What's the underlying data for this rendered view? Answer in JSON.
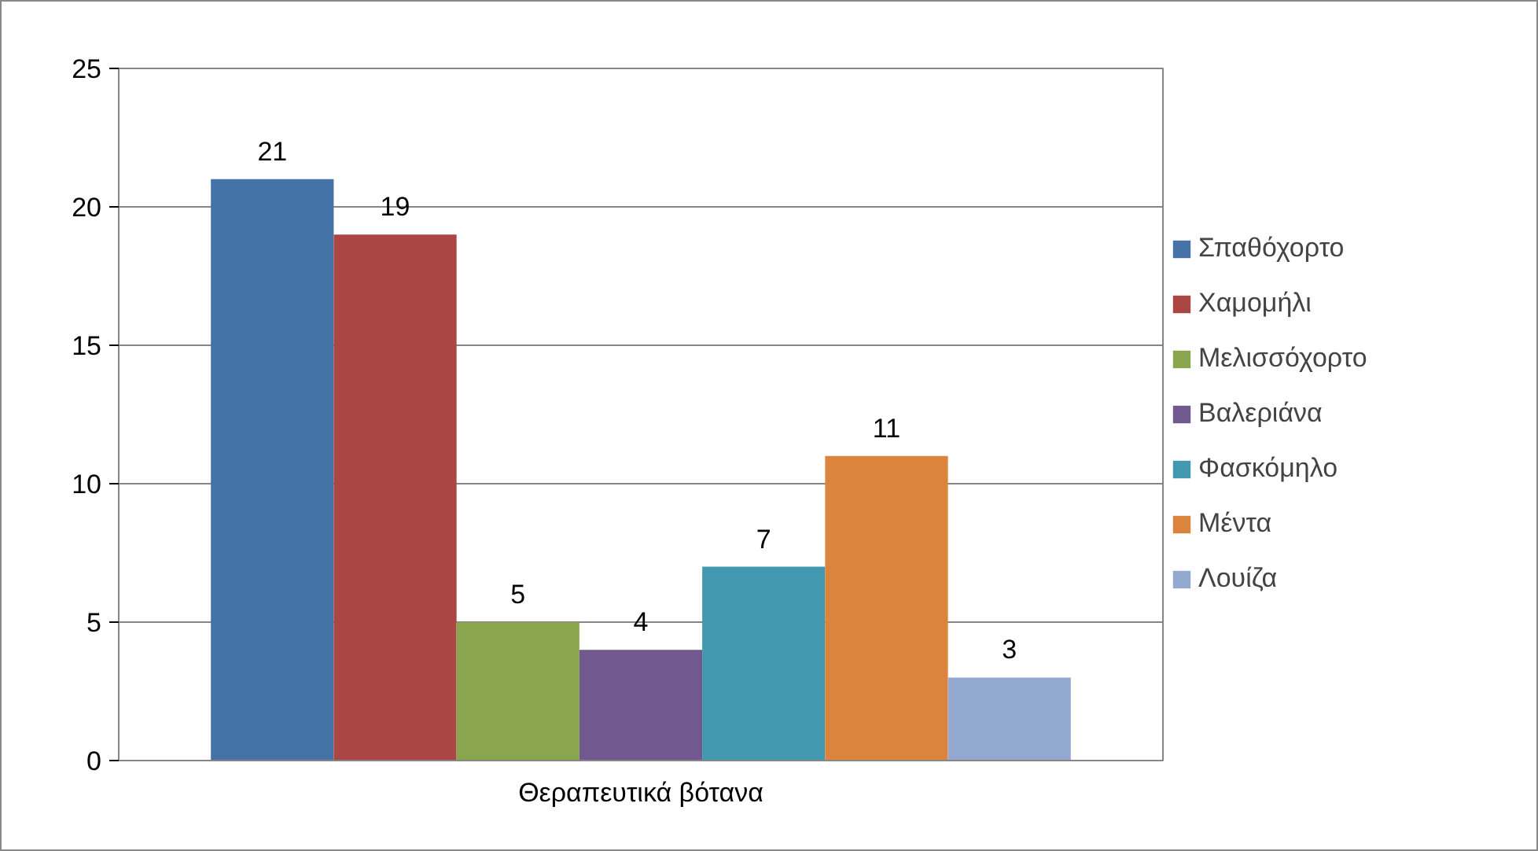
{
  "chart_data": {
    "type": "bar",
    "categories": [
      "Θεραπευτικά βότανα"
    ],
    "series": [
      {
        "name": "Σπαθόχορτο",
        "color": "#4572a7",
        "values": [
          21
        ]
      },
      {
        "name": "Χαμομήλι",
        "color": "#aa4643",
        "values": [
          19
        ]
      },
      {
        "name": "Μελισσόχορτο",
        "color": "#89a54e",
        "values": [
          5
        ]
      },
      {
        "name": "Βαλεριάνα",
        "color": "#71588f",
        "values": [
          4
        ]
      },
      {
        "name": "Φασκόμηλο",
        "color": "#4198af",
        "values": [
          7
        ]
      },
      {
        "name": "Μέντα",
        "color": "#db843d",
        "values": [
          11
        ]
      },
      {
        "name": "Λουίζα",
        "color": "#93a9cf",
        "values": [
          3
        ]
      }
    ],
    "ylim": [
      0,
      25
    ],
    "yticks": [
      0,
      5,
      10,
      15,
      20,
      25
    ],
    "grid": "y",
    "legend": "right",
    "data_labels": true
  }
}
